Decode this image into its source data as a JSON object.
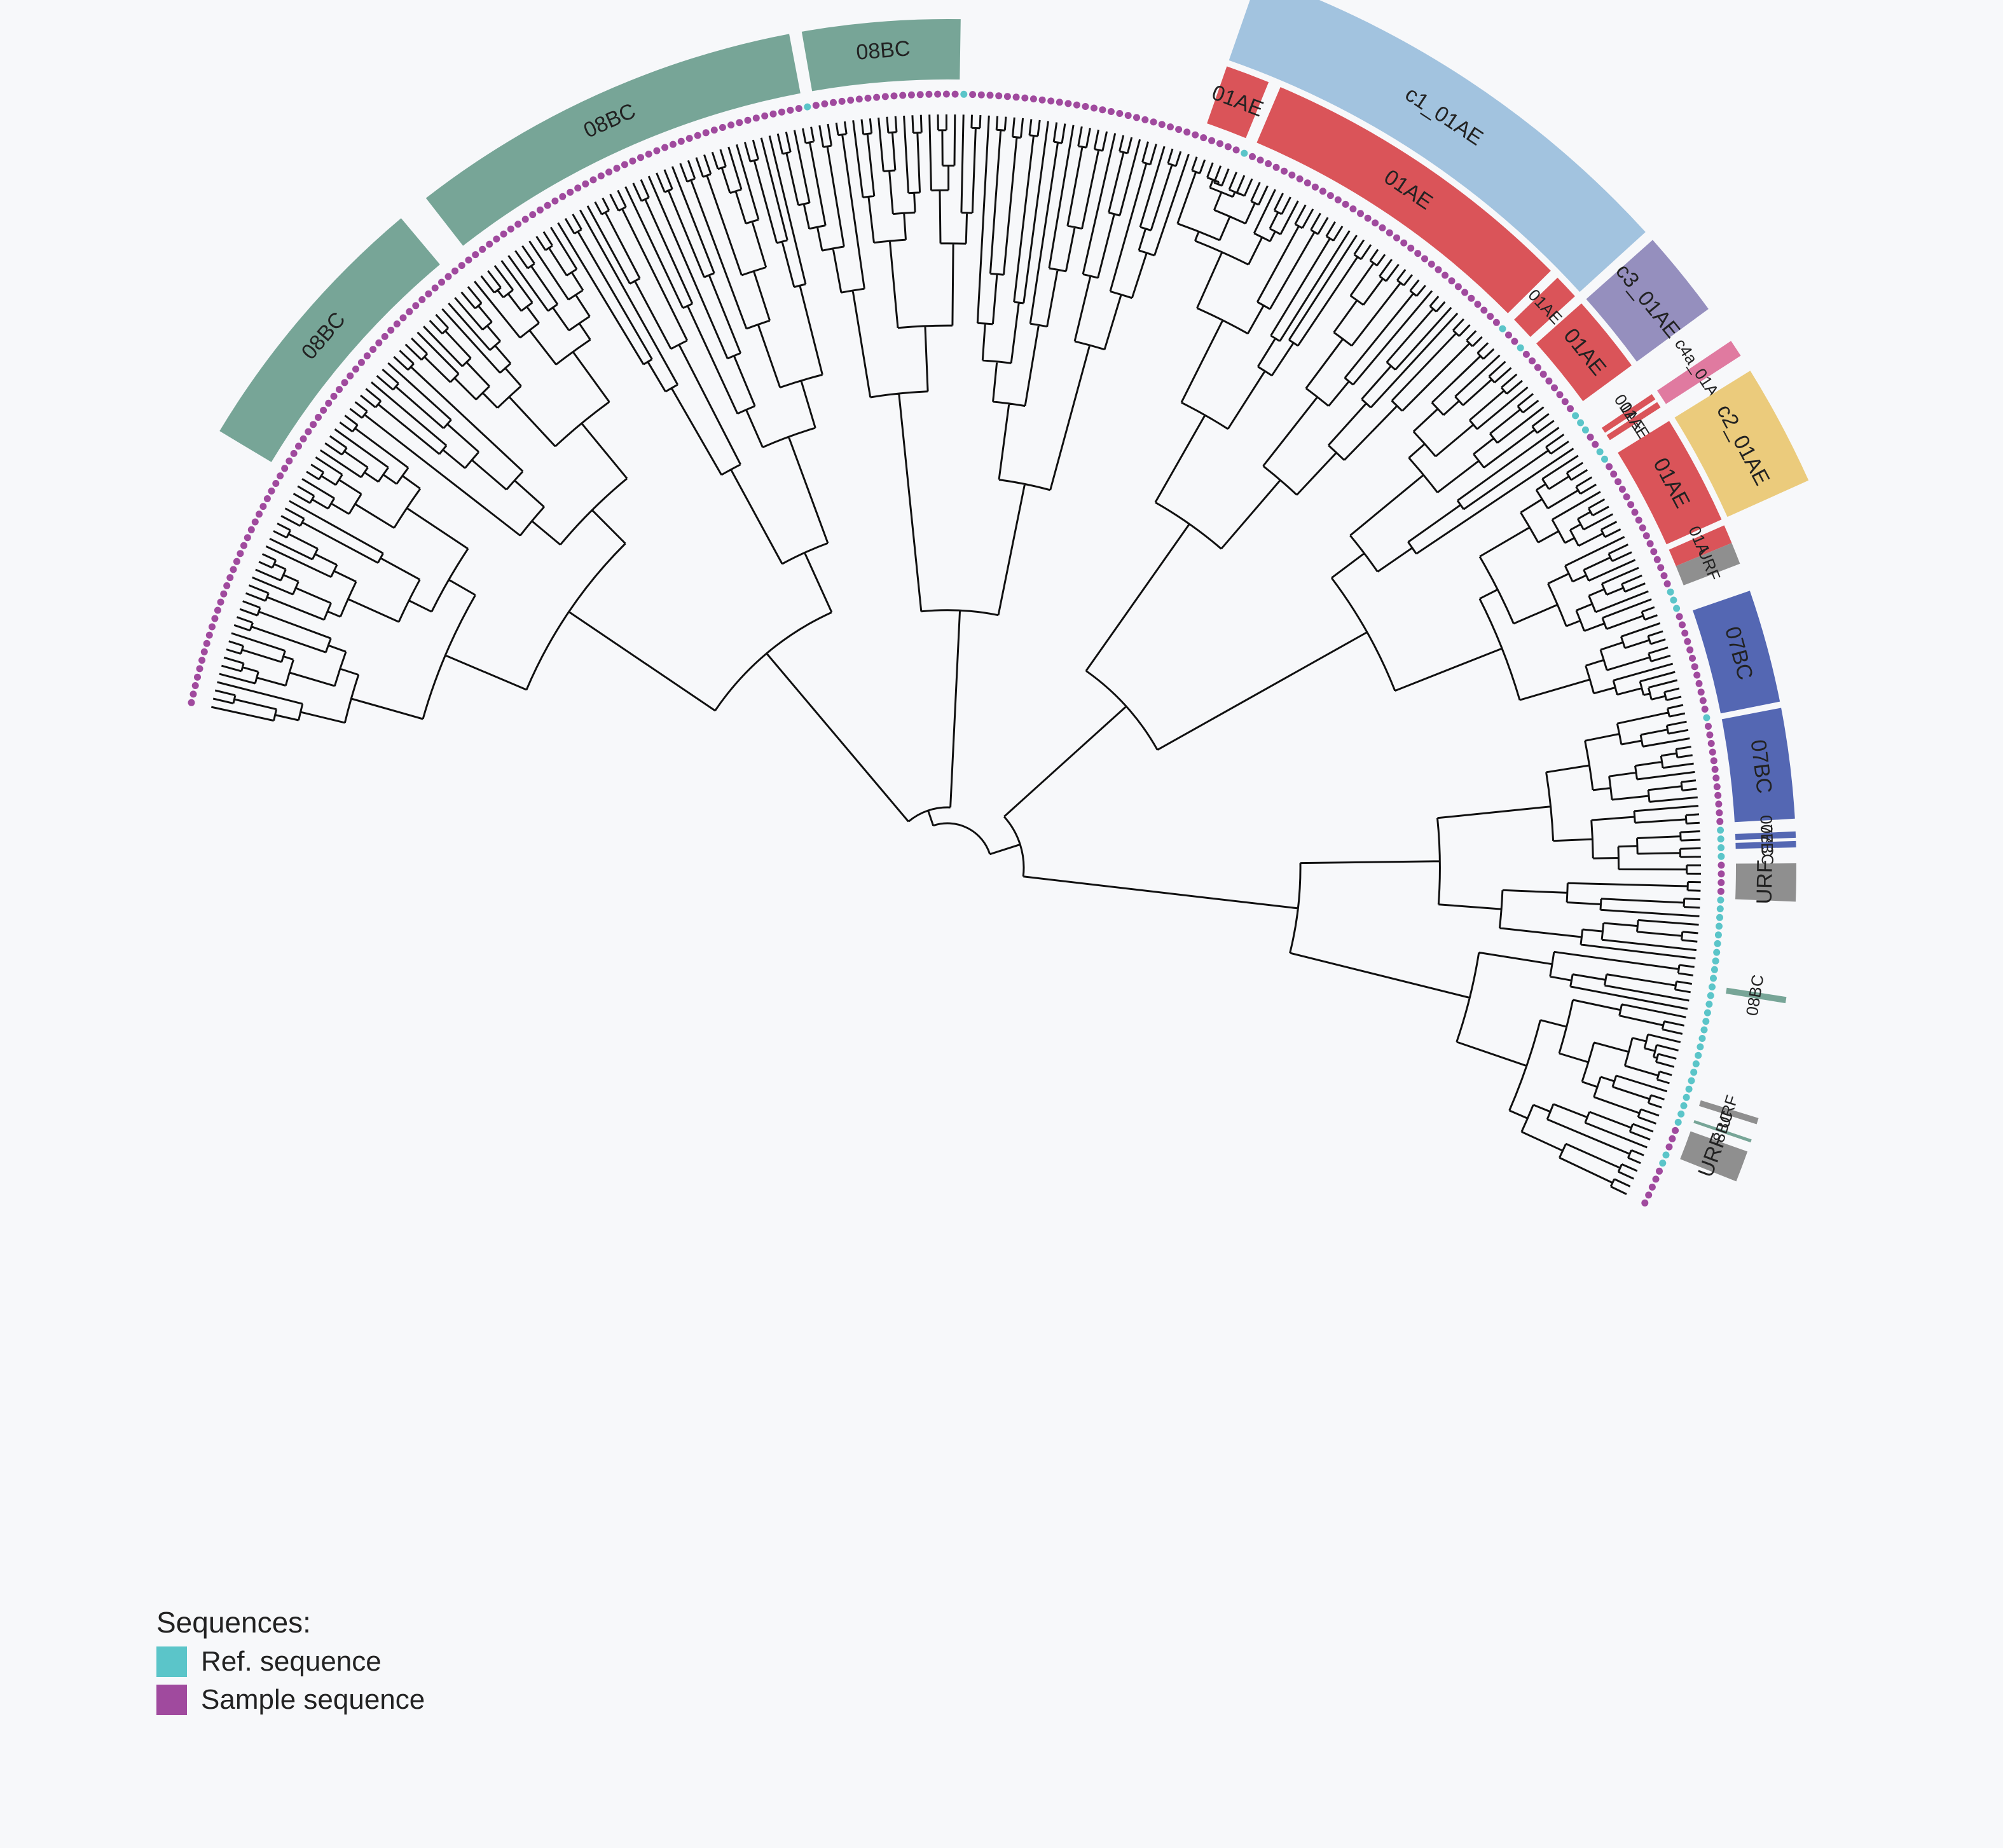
{
  "colors": {
    "background": "#f7f8fa",
    "branch": "#111111",
    "ref_sequence": "#5bc5c9",
    "sample_sequence": "#a04a9e",
    "08BC": "#77a597",
    "URF": "#8f8f8f",
    "07BC": "#5467b3",
    "01AE": "#da5459",
    "c1_01AE": "#a2c3df",
    "c2_01AE": "#ebcb7c",
    "c3_01AE": "#958fbe",
    "c4a_01AE": "#e07aa0"
  },
  "legend": {
    "title": "Sequences:",
    "items": [
      {
        "label": "Ref. sequence",
        "color": "#5bc5c9"
      },
      {
        "label": "Sample sequence",
        "color": "#a04a9e"
      }
    ]
  },
  "inner_clades": [
    {
      "label": "08BC",
      "color": "#77a597",
      "start": 88,
      "end": 176
    },
    {
      "label": "08BC",
      "color": "#77a597",
      "start": 186,
      "end": 312
    },
    {
      "label": "08BC",
      "color": "#77a597",
      "start": 316,
      "end": 366
    },
    {
      "label": "01AE",
      "color": "#da5459",
      "start": 451,
      "end": 465
    },
    {
      "label": "01AE",
      "color": "#da5459",
      "start": 469,
      "end": 572
    },
    {
      "label": "01AE",
      "color": "#da5459",
      "start": 575,
      "end": 583
    },
    {
      "label": "01AE",
      "color": "#da5459",
      "start": 586,
      "end": 611
    },
    {
      "label": "01AE",
      "color": "#da5459",
      "start": 622,
      "end": 624
    },
    {
      "label": "01AE",
      "color": "#da5459",
      "start": 625,
      "end": 627
    },
    {
      "label": "01AE",
      "color": "#da5459",
      "start": 632,
      "end": 667
    },
    {
      "label": "01AE",
      "color": "#da5459",
      "start": 669,
      "end": 675
    },
    {
      "label": "URF",
      "color": "#8f8f8f",
      "start": 675,
      "end": 682
    },
    {
      "label": "07BC",
      "color": "#5467b3",
      "start": 691,
      "end": 727
    },
    {
      "label": "07BC",
      "color": "#5467b3",
      "start": 729,
      "end": 764
    },
    {
      "label": "07BC",
      "color": "#5467b3",
      "start": 768,
      "end": 770
    },
    {
      "label": "07BC",
      "color": "#5467b3",
      "start": 771,
      "end": 773
    },
    {
      "label": "URF",
      "color": "#8f8f8f",
      "start": 778,
      "end": 790
    },
    {
      "label": "08BC",
      "color": "#77a597",
      "start": 820,
      "end": 822
    },
    {
      "label": "URF",
      "color": "#8f8f8f",
      "start": 859,
      "end": 861
    },
    {
      "label": "08BC",
      "color": "#77a597",
      "start": 866,
      "end": 867
    },
    {
      "label": "URF",
      "color": "#8f8f8f",
      "start": 870,
      "end": 880
    }
  ],
  "outer_clusters": [
    {
      "label": "c1_01AE",
      "color": "#a2c3df",
      "start": 451,
      "end": 583
    },
    {
      "label": "c3_01AE",
      "color": "#958fbe",
      "start": 586,
      "end": 611
    },
    {
      "label": "c4a_01AE",
      "color": "#e07aa0",
      "start": 622,
      "end": 627
    },
    {
      "label": "c2_01AE",
      "color": "#ebcb7c",
      "start": 632,
      "end": 667
    }
  ]
}
